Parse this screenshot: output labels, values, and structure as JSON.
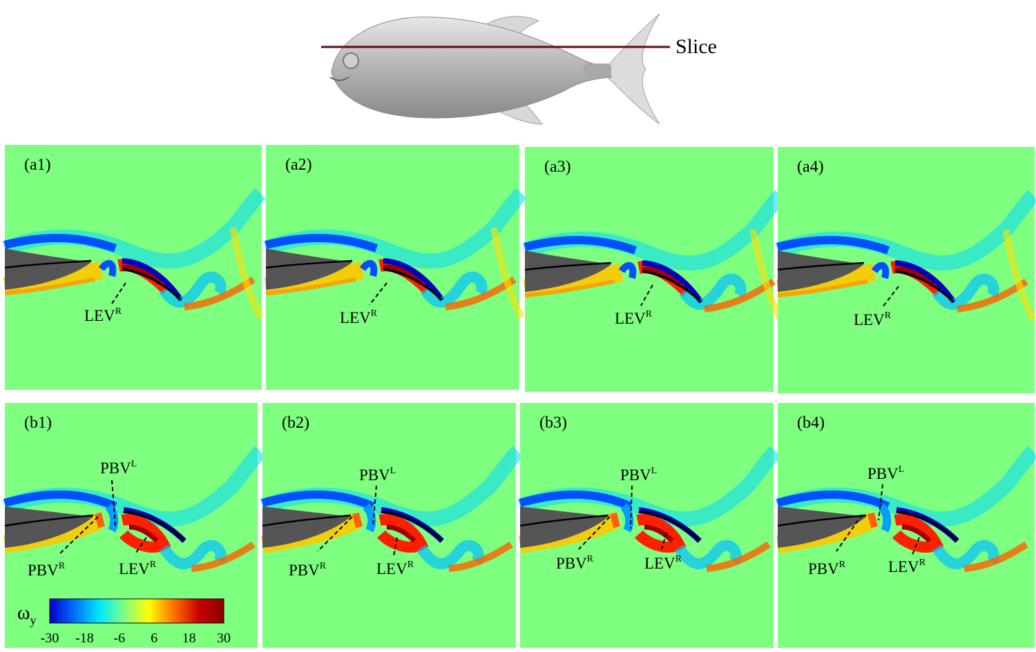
{
  "header": {
    "slice_label": "Slice"
  },
  "panels": {
    "a1": {
      "label": "(a1)",
      "ann": [
        {
          "base": "LEV",
          "sup": "R"
        }
      ]
    },
    "a2": {
      "label": "(a2)",
      "ann": [
        {
          "base": "LEV",
          "sup": "R"
        }
      ]
    },
    "a3": {
      "label": "(a3)",
      "ann": [
        {
          "base": "LEV",
          "sup": "R"
        }
      ]
    },
    "a4": {
      "label": "(a4)",
      "ann": [
        {
          "base": "LEV",
          "sup": "R"
        }
      ]
    },
    "b1": {
      "label": "(b1)",
      "ann": [
        {
          "base": "PBV",
          "sup": "L"
        },
        {
          "base": "PBV",
          "sup": "R"
        },
        {
          "base": "LEV",
          "sup": "R"
        }
      ]
    },
    "b2": {
      "label": "(b2)",
      "ann": [
        {
          "base": "PBV",
          "sup": "L"
        },
        {
          "base": "PBV",
          "sup": "R"
        },
        {
          "base": "LEV",
          "sup": "R"
        }
      ]
    },
    "b3": {
      "label": "(b3)",
      "ann": [
        {
          "base": "PBV",
          "sup": "L"
        },
        {
          "base": "PBV",
          "sup": "R"
        },
        {
          "base": "LEV",
          "sup": "R"
        }
      ]
    },
    "b4": {
      "label": "(b4)",
      "ann": [
        {
          "base": "PBV",
          "sup": "L"
        },
        {
          "base": "PBV",
          "sup": "R"
        },
        {
          "base": "LEV",
          "sup": "R"
        }
      ]
    }
  },
  "colorbar": {
    "symbol": "ω",
    "subscript": "y",
    "ticks": [
      "-30",
      "-18",
      "-6",
      "6",
      "18",
      "30"
    ],
    "colors": [
      "#0000c8",
      "#0070ff",
      "#00e8ff",
      "#7fff7f",
      "#ffff00",
      "#ff7000",
      "#c80000",
      "#8b0000"
    ]
  },
  "colors": {
    "background_field": "#7fff7f",
    "body": "#555555",
    "slice_line": "#5a0e0e"
  }
}
